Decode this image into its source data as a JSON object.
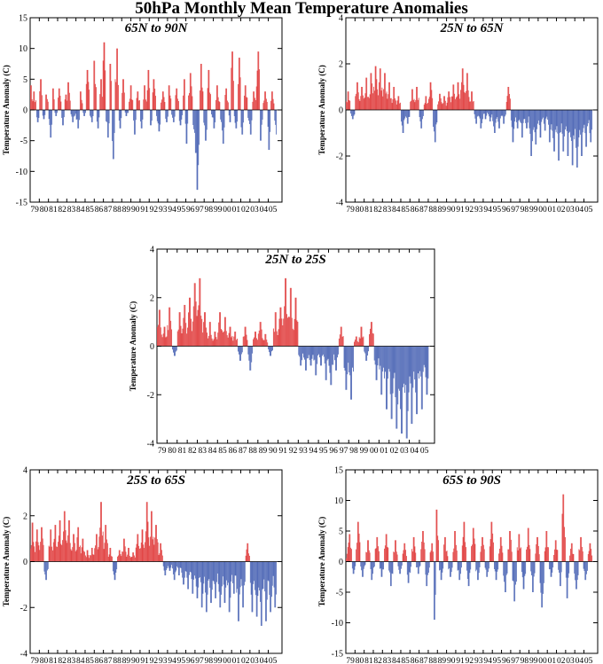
{
  "title": "50hPa Monthly Mean Temperature Anomalies",
  "colors": {
    "positive": "#e03c3c",
    "negative": "#4a64b4"
  },
  "chart_data": [
    {
      "type": "bar",
      "title": "65N to 90N",
      "ylabel": "Temperature Anomaly (C)",
      "ylim": [
        -15,
        15
      ],
      "yticks": [
        -15,
        -10,
        -5,
        0,
        5,
        10,
        15
      ],
      "xlim": [
        1979,
        2006.5
      ],
      "xticks": [
        "79",
        "80",
        "81",
        "82",
        "83",
        "84",
        "85",
        "86",
        "87",
        "88",
        "89",
        "90",
        "91",
        "92",
        "93",
        "94",
        "95",
        "96",
        "97",
        "98",
        "99",
        "00",
        "01",
        "02",
        "03",
        "04",
        "05"
      ],
      "points": [
        [
          1979.08,
          4.0
        ],
        [
          1979.42,
          3.0
        ],
        [
          1979.83,
          -2.0
        ],
        [
          1980.17,
          5.0
        ],
        [
          1980.5,
          -1.5
        ],
        [
          1980.75,
          2.5
        ],
        [
          1981.25,
          -4.5
        ],
        [
          1981.5,
          3.5
        ],
        [
          1981.83,
          -1.0
        ],
        [
          1982.17,
          3.5
        ],
        [
          1982.58,
          -2.5
        ],
        [
          1982.92,
          2.5
        ],
        [
          1983.17,
          4.5
        ],
        [
          1983.67,
          -2.0
        ],
        [
          1984.25,
          -3.0
        ],
        [
          1984.5,
          3.0
        ],
        [
          1984.92,
          -1.0
        ],
        [
          1985.25,
          6.5
        ],
        [
          1985.75,
          -2.0
        ],
        [
          1986.0,
          8.0
        ],
        [
          1986.42,
          -3.0
        ],
        [
          1986.75,
          5.0
        ],
        [
          1987.08,
          11.0
        ],
        [
          1987.5,
          -4.5
        ],
        [
          1987.75,
          7.5
        ],
        [
          1988.08,
          -8.0
        ],
        [
          1988.5,
          10.0
        ],
        [
          1988.83,
          -3.0
        ],
        [
          1989.17,
          5.0
        ],
        [
          1989.5,
          -1.0
        ],
        [
          1990.0,
          4.0
        ],
        [
          1990.42,
          -4.0
        ],
        [
          1990.75,
          3.0
        ],
        [
          1991.17,
          -3.0
        ],
        [
          1991.5,
          4.0
        ],
        [
          1991.92,
          6.5
        ],
        [
          1992.17,
          -2.5
        ],
        [
          1992.5,
          5.0
        ],
        [
          1993.08,
          -3.5
        ],
        [
          1993.5,
          3.0
        ],
        [
          1993.92,
          -2.0
        ],
        [
          1994.17,
          4.0
        ],
        [
          1994.67,
          -2.0
        ],
        [
          1995.0,
          3.5
        ],
        [
          1995.42,
          -2.5
        ],
        [
          1995.83,
          5.0
        ],
        [
          1996.08,
          -5.5
        ],
        [
          1996.5,
          6.0
        ],
        [
          1997.08,
          -7.0
        ],
        [
          1997.25,
          -13.0
        ],
        [
          1997.67,
          7.5
        ],
        [
          1998.17,
          -5.0
        ],
        [
          1998.5,
          6.5
        ],
        [
          1999.08,
          -3.0
        ],
        [
          1999.42,
          4.0
        ],
        [
          2000.08,
          -5.5
        ],
        [
          2000.42,
          3.5
        ],
        [
          2000.83,
          -2.0
        ],
        [
          2001.08,
          9.5
        ],
        [
          2001.5,
          -3.0
        ],
        [
          2001.83,
          8.5
        ],
        [
          2002.17,
          -4.0
        ],
        [
          2002.5,
          4.0
        ],
        [
          2003.08,
          -4.0
        ],
        [
          2003.42,
          3.0
        ],
        [
          2003.92,
          9.5
        ],
        [
          2004.17,
          -5.0
        ],
        [
          2004.67,
          3.0
        ],
        [
          2005.08,
          -6.5
        ],
        [
          2005.42,
          3.0
        ],
        [
          2005.92,
          -4.0
        ]
      ]
    },
    {
      "type": "bar",
      "title": "25N to 65N",
      "ylabel": "Temperature Anomaly (C)",
      "ylim": [
        -4,
        4
      ],
      "yticks": [
        -4,
        -2,
        0,
        2,
        4
      ],
      "xlim": [
        1979,
        2006.5
      ],
      "xticks": [
        "79",
        "80",
        "81",
        "82",
        "83",
        "84",
        "85",
        "86",
        "87",
        "88",
        "89",
        "90",
        "91",
        "92",
        "93",
        "94",
        "95",
        "96",
        "97",
        "98",
        "99",
        "00",
        "01",
        "02",
        "03",
        "04",
        "05"
      ],
      "points": [
        [
          1979.25,
          0.8
        ],
        [
          1979.75,
          -0.4
        ],
        [
          1980.25,
          1.2
        ],
        [
          1980.75,
          1.0
        ],
        [
          1981.25,
          1.4
        ],
        [
          1981.75,
          1.6
        ],
        [
          1982.25,
          1.9
        ],
        [
          1982.75,
          1.8
        ],
        [
          1983.25,
          1.6
        ],
        [
          1983.75,
          1.2
        ],
        [
          1984.25,
          1.0
        ],
        [
          1984.75,
          0.6
        ],
        [
          1985.25,
          -1.0
        ],
        [
          1985.75,
          -0.6
        ],
        [
          1986.25,
          0.9
        ],
        [
          1986.75,
          1.0
        ],
        [
          1987.25,
          -0.8
        ],
        [
          1987.75,
          0.6
        ],
        [
          1988.25,
          1.2
        ],
        [
          1988.75,
          -1.4
        ],
        [
          1989.25,
          0.7
        ],
        [
          1989.75,
          0.6
        ],
        [
          1990.25,
          0.8
        ],
        [
          1990.75,
          1.1
        ],
        [
          1991.25,
          1.2
        ],
        [
          1991.75,
          1.8
        ],
        [
          1992.25,
          1.6
        ],
        [
          1992.75,
          0.8
        ],
        [
          1993.25,
          -0.6
        ],
        [
          1993.75,
          -0.8
        ],
        [
          1994.25,
          -0.4
        ],
        [
          1994.75,
          -0.5
        ],
        [
          1995.25,
          -1.0
        ],
        [
          1995.75,
          -0.8
        ],
        [
          1996.25,
          -0.6
        ],
        [
          1996.75,
          1.0
        ],
        [
          1997.25,
          -1.4
        ],
        [
          1997.75,
          -0.8
        ],
        [
          1998.25,
          -1.2
        ],
        [
          1998.75,
          -0.8
        ],
        [
          1999.25,
          -2.0
        ],
        [
          1999.75,
          -1.5
        ],
        [
          2000.25,
          -1.2
        ],
        [
          2000.75,
          -0.9
        ],
        [
          2001.25,
          -1.4
        ],
        [
          2001.75,
          -1.8
        ],
        [
          2002.25,
          -2.2
        ],
        [
          2002.75,
          -1.8
        ],
        [
          2003.25,
          -2.0
        ],
        [
          2003.75,
          -2.4
        ],
        [
          2004.25,
          -2.5
        ],
        [
          2004.75,
          -2.0
        ],
        [
          2005.25,
          -1.6
        ],
        [
          2005.75,
          -1.4
        ]
      ]
    },
    {
      "type": "bar",
      "title": "25N to 25S",
      "ylabel": "Temperature Anomaly (C)",
      "ylim": [
        -4,
        4
      ],
      "yticks": [
        -4,
        -2,
        0,
        2,
        4
      ],
      "xlim": [
        1979,
        2006.5
      ],
      "xticks": [
        "79",
        "80",
        "81",
        "82",
        "83",
        "84",
        "85",
        "86",
        "87",
        "88",
        "89",
        "90",
        "91",
        "92",
        "93",
        "94",
        "95",
        "96",
        "97",
        "98",
        "99",
        "00",
        "01",
        "02",
        "03",
        "04",
        "05"
      ],
      "points": [
        [
          1979.25,
          1.5
        ],
        [
          1979.75,
          0.8
        ],
        [
          1980.25,
          1.6
        ],
        [
          1980.75,
          -0.4
        ],
        [
          1981.25,
          1.4
        ],
        [
          1981.75,
          1.7
        ],
        [
          1982.25,
          2.0
        ],
        [
          1982.75,
          2.6
        ],
        [
          1983.25,
          2.8
        ],
        [
          1983.75,
          1.4
        ],
        [
          1984.25,
          1.0
        ],
        [
          1984.75,
          0.6
        ],
        [
          1985.25,
          1.4
        ],
        [
          1985.75,
          1.2
        ],
        [
          1986.25,
          0.8
        ],
        [
          1986.75,
          0.6
        ],
        [
          1987.25,
          -0.6
        ],
        [
          1987.75,
          0.8
        ],
        [
          1988.25,
          -1.0
        ],
        [
          1988.75,
          0.6
        ],
        [
          1989.25,
          1.0
        ],
        [
          1989.75,
          0.5
        ],
        [
          1990.25,
          -0.4
        ],
        [
          1990.75,
          1.4
        ],
        [
          1991.25,
          1.6
        ],
        [
          1991.75,
          2.8
        ],
        [
          1992.25,
          2.4
        ],
        [
          1992.75,
          2.0
        ],
        [
          1993.25,
          -0.8
        ],
        [
          1993.75,
          -1.0
        ],
        [
          1994.25,
          -0.8
        ],
        [
          1994.75,
          -1.2
        ],
        [
          1995.25,
          -0.8
        ],
        [
          1995.75,
          -1.4
        ],
        [
          1996.25,
          -1.6
        ],
        [
          1996.75,
          -1.0
        ],
        [
          1997.25,
          0.8
        ],
        [
          1997.75,
          -1.8
        ],
        [
          1998.25,
          -2.2
        ],
        [
          1998.75,
          0.4
        ],
        [
          1999.25,
          0.8
        ],
        [
          1999.75,
          -0.6
        ],
        [
          2000.25,
          1.0
        ],
        [
          2000.75,
          -1.4
        ],
        [
          2001.25,
          -2.0
        ],
        [
          2001.75,
          -2.6
        ],
        [
          2002.25,
          -3.0
        ],
        [
          2002.75,
          -3.4
        ],
        [
          2003.25,
          -3.6
        ],
        [
          2003.75,
          -3.8
        ],
        [
          2004.25,
          -3.2
        ],
        [
          2004.75,
          -2.8
        ],
        [
          2005.25,
          -2.6
        ],
        [
          2005.75,
          -2.0
        ]
      ]
    },
    {
      "type": "bar",
      "title": "25S to 65S",
      "ylabel": "Temperature Anomaly (C)",
      "ylim": [
        -4,
        4
      ],
      "yticks": [
        -4,
        -2,
        0,
        2,
        4
      ],
      "xlim": [
        1979,
        2006.5
      ],
      "xticks": [
        "79",
        "80",
        "81",
        "82",
        "83",
        "84",
        "85",
        "86",
        "87",
        "88",
        "89",
        "90",
        "91",
        "92",
        "93",
        "94",
        "95",
        "96",
        "97",
        "98",
        "99",
        "00",
        "01",
        "02",
        "03",
        "04",
        "05"
      ],
      "points": [
        [
          1979.25,
          1.7
        ],
        [
          1979.75,
          1.4
        ],
        [
          1980.25,
          1.5
        ],
        [
          1980.75,
          -0.8
        ],
        [
          1981.25,
          1.4
        ],
        [
          1981.75,
          1.6
        ],
        [
          1982.25,
          1.8
        ],
        [
          1982.75,
          2.2
        ],
        [
          1983.25,
          1.8
        ],
        [
          1983.75,
          1.2
        ],
        [
          1984.25,
          1.5
        ],
        [
          1984.75,
          1.0
        ],
        [
          1985.25,
          0.5
        ],
        [
          1985.75,
          0.6
        ],
        [
          1986.25,
          1.2
        ],
        [
          1986.75,
          2.6
        ],
        [
          1987.25,
          1.6
        ],
        [
          1987.75,
          0.6
        ],
        [
          1988.25,
          -0.8
        ],
        [
          1988.75,
          0.5
        ],
        [
          1989.25,
          1.0
        ],
        [
          1989.75,
          0.6
        ],
        [
          1990.25,
          0.4
        ],
        [
          1990.75,
          1.2
        ],
        [
          1991.25,
          1.4
        ],
        [
          1991.75,
          2.6
        ],
        [
          1992.25,
          2.2
        ],
        [
          1992.75,
          1.6
        ],
        [
          1993.25,
          0.8
        ],
        [
          1993.75,
          -0.6
        ],
        [
          1994.25,
          -0.4
        ],
        [
          1994.75,
          -0.8
        ],
        [
          1995.25,
          -0.6
        ],
        [
          1995.75,
          -1.0
        ],
        [
          1996.25,
          -1.2
        ],
        [
          1996.75,
          -1.4
        ],
        [
          1997.25,
          -1.6
        ],
        [
          1997.75,
          -2.0
        ],
        [
          1998.25,
          -2.2
        ],
        [
          1998.75,
          -1.8
        ],
        [
          1999.25,
          -1.6
        ],
        [
          1999.75,
          -2.0
        ],
        [
          2000.25,
          -1.8
        ],
        [
          2000.75,
          -2.2
        ],
        [
          2001.25,
          -1.4
        ],
        [
          2001.75,
          -2.6
        ],
        [
          2002.25,
          -2.0
        ],
        [
          2002.75,
          0.8
        ],
        [
          2003.25,
          -2.2
        ],
        [
          2003.75,
          -2.4
        ],
        [
          2004.25,
          -2.8
        ],
        [
          2004.75,
          -2.6
        ],
        [
          2005.25,
          -2.2
        ],
        [
          2005.75,
          -2.0
        ]
      ]
    },
    {
      "type": "bar",
      "title": "65S to 90S",
      "ylabel": "Temperature Anomaly (C)",
      "ylim": [
        -15,
        15
      ],
      "yticks": [
        -15,
        -10,
        -5,
        0,
        5,
        10,
        15
      ],
      "xlim": [
        1979,
        2006.5
      ],
      "xticks": [
        "79",
        "80",
        "81",
        "82",
        "83",
        "84",
        "85",
        "86",
        "87",
        "88",
        "89",
        "90",
        "91",
        "92",
        "93",
        "94",
        "95",
        "96",
        "97",
        "98",
        "99",
        "00",
        "01",
        "02",
        "03",
        "04",
        "05"
      ],
      "points": [
        [
          1979.42,
          4.5
        ],
        [
          1979.83,
          -2.0
        ],
        [
          1980.33,
          6.5
        ],
        [
          1980.83,
          -2.5
        ],
        [
          1981.42,
          3.5
        ],
        [
          1981.83,
          -3.0
        ],
        [
          1982.42,
          4.0
        ],
        [
          1982.92,
          -2.5
        ],
        [
          1983.42,
          4.5
        ],
        [
          1983.92,
          -4.0
        ],
        [
          1984.42,
          3.5
        ],
        [
          1984.92,
          -2.0
        ],
        [
          1985.42,
          3.0
        ],
        [
          1985.83,
          -3.5
        ],
        [
          1986.42,
          4.0
        ],
        [
          1986.92,
          -2.0
        ],
        [
          1987.42,
          5.0
        ],
        [
          1987.83,
          -4.0
        ],
        [
          1988.42,
          3.0
        ],
        [
          1988.67,
          -9.5
        ],
        [
          1988.92,
          8.5
        ],
        [
          1989.42,
          -3.0
        ],
        [
          1989.83,
          4.0
        ],
        [
          1990.42,
          -2.5
        ],
        [
          1990.92,
          5.0
        ],
        [
          1991.42,
          -3.0
        ],
        [
          1991.92,
          6.5
        ],
        [
          1992.42,
          -4.0
        ],
        [
          1992.92,
          5.5
        ],
        [
          1993.42,
          -3.0
        ],
        [
          1993.92,
          4.0
        ],
        [
          1994.42,
          -2.5
        ],
        [
          1994.92,
          6.5
        ],
        [
          1995.42,
          -3.0
        ],
        [
          1995.92,
          4.0
        ],
        [
          1996.42,
          -5.0
        ],
        [
          1996.92,
          5.0
        ],
        [
          1997.42,
          -6.5
        ],
        [
          1997.92,
          4.5
        ],
        [
          1998.42,
          -4.5
        ],
        [
          1998.92,
          5.5
        ],
        [
          1999.42,
          -5.0
        ],
        [
          1999.92,
          4.0
        ],
        [
          2000.42,
          -7.5
        ],
        [
          2000.92,
          5.0
        ],
        [
          2001.42,
          -2.5
        ],
        [
          2001.92,
          3.5
        ],
        [
          2002.42,
          -4.0
        ],
        [
          2002.75,
          11.0
        ],
        [
          2003.17,
          -6.0
        ],
        [
          2003.67,
          3.0
        ],
        [
          2004.17,
          -4.5
        ],
        [
          2004.67,
          4.0
        ],
        [
          2005.17,
          -3.0
        ],
        [
          2005.67,
          3.0
        ]
      ]
    }
  ]
}
